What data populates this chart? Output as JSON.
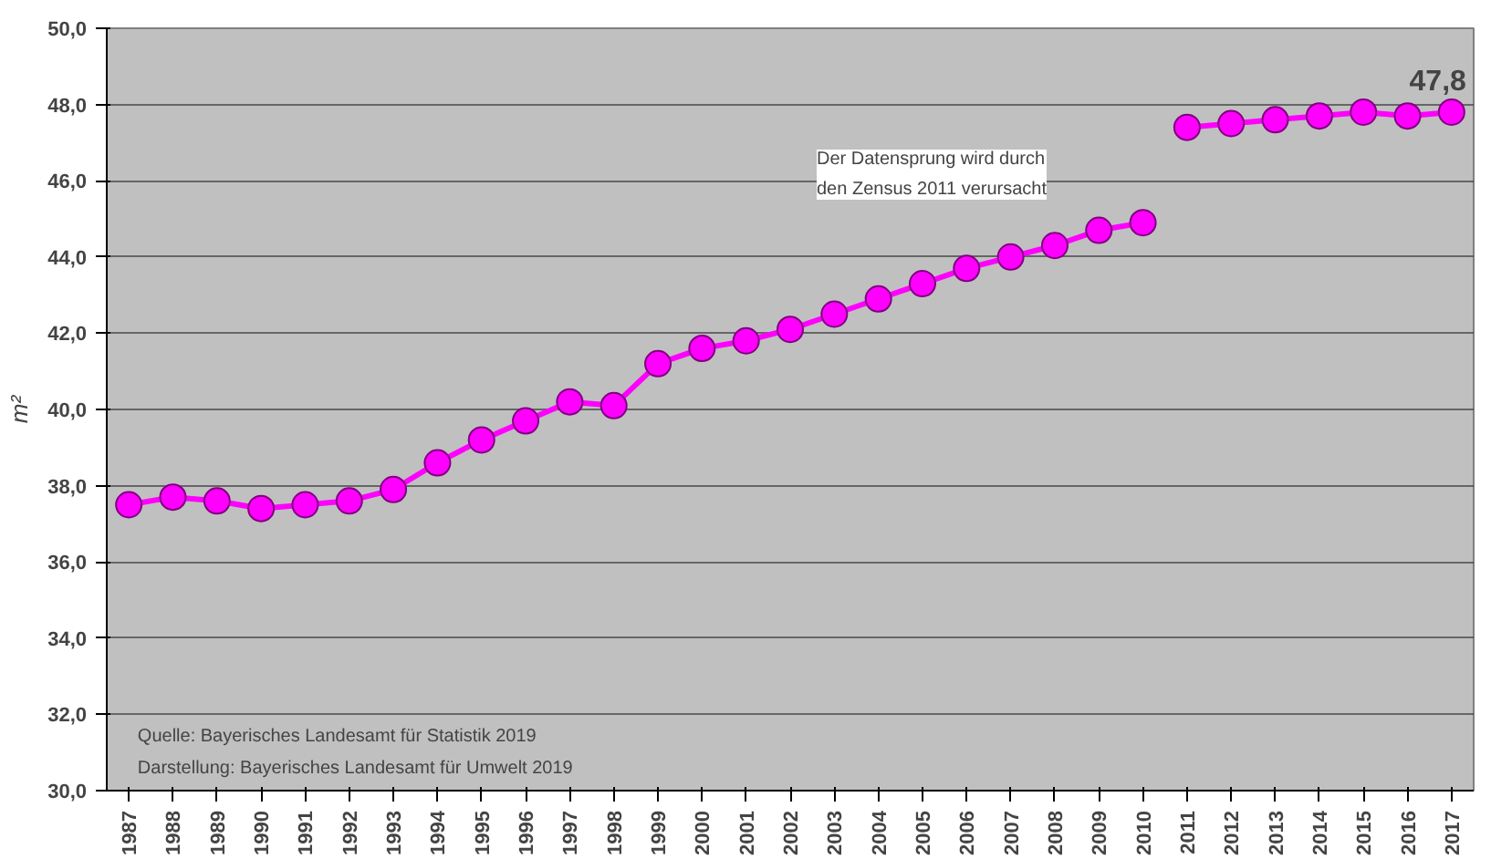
{
  "chart_data": {
    "type": "line",
    "ylabel": "m²",
    "series": [
      {
        "color": "#ff00ff",
        "x": [
          1987,
          1988,
          1989,
          1990,
          1991,
          1992,
          1993,
          1994,
          1995,
          1996,
          1997,
          1998,
          1999,
          2000,
          2001,
          2002,
          2003,
          2004,
          2005,
          2006,
          2007,
          2008,
          2009,
          2010
        ],
        "values": [
          37.5,
          37.7,
          37.6,
          37.4,
          37.5,
          37.6,
          37.9,
          38.6,
          39.2,
          39.7,
          40.2,
          40.1,
          41.2,
          41.6,
          41.8,
          42.1,
          42.5,
          42.9,
          43.3,
          43.7,
          44.0,
          44.3,
          44.7,
          44.9
        ]
      },
      {
        "color": "#ff00ff",
        "x": [
          2011,
          2012,
          2013,
          2014,
          2015,
          2016,
          2017
        ],
        "values": [
          47.4,
          47.5,
          47.6,
          47.7,
          47.8,
          47.7,
          47.8
        ],
        "value_labels": [
          null,
          null,
          null,
          null,
          null,
          null,
          "47,8"
        ]
      }
    ],
    "xlim": [
      1986.5,
      2017.5
    ],
    "xticks": [
      1987,
      1988,
      1989,
      1990,
      1991,
      1992,
      1993,
      1994,
      1995,
      1996,
      1997,
      1998,
      1999,
      2000,
      2001,
      2002,
      2003,
      2004,
      2005,
      2006,
      2007,
      2008,
      2009,
      2010,
      2011,
      2012,
      2013,
      2014,
      2015,
      2016,
      2017
    ],
    "ylim": [
      30,
      50
    ],
    "yticks": [
      {
        "value": 30,
        "label": "30,0"
      },
      {
        "value": 32,
        "label": "32,0"
      },
      {
        "value": 34,
        "label": "34,0"
      },
      {
        "value": 36,
        "label": "36,0"
      },
      {
        "value": 38,
        "label": "38,0"
      },
      {
        "value": 40,
        "label": "40,0"
      },
      {
        "value": 42,
        "label": "42,0"
      },
      {
        "value": 44,
        "label": "44,0"
      },
      {
        "value": 46,
        "label": "46,0"
      },
      {
        "value": 48,
        "label": "48,0"
      },
      {
        "value": 50,
        "label": "50,0"
      }
    ],
    "grid": "y",
    "marker": "circle",
    "line_style": "solid",
    "annotations": [
      "Der Datensprung wird durch\nden Zensus 2011 verursacht",
      "Quelle: Bayerisches Landesamt für Statistik 2019\nDarstellung: Bayerisches Landesamt für Umwelt 2019"
    ]
  }
}
